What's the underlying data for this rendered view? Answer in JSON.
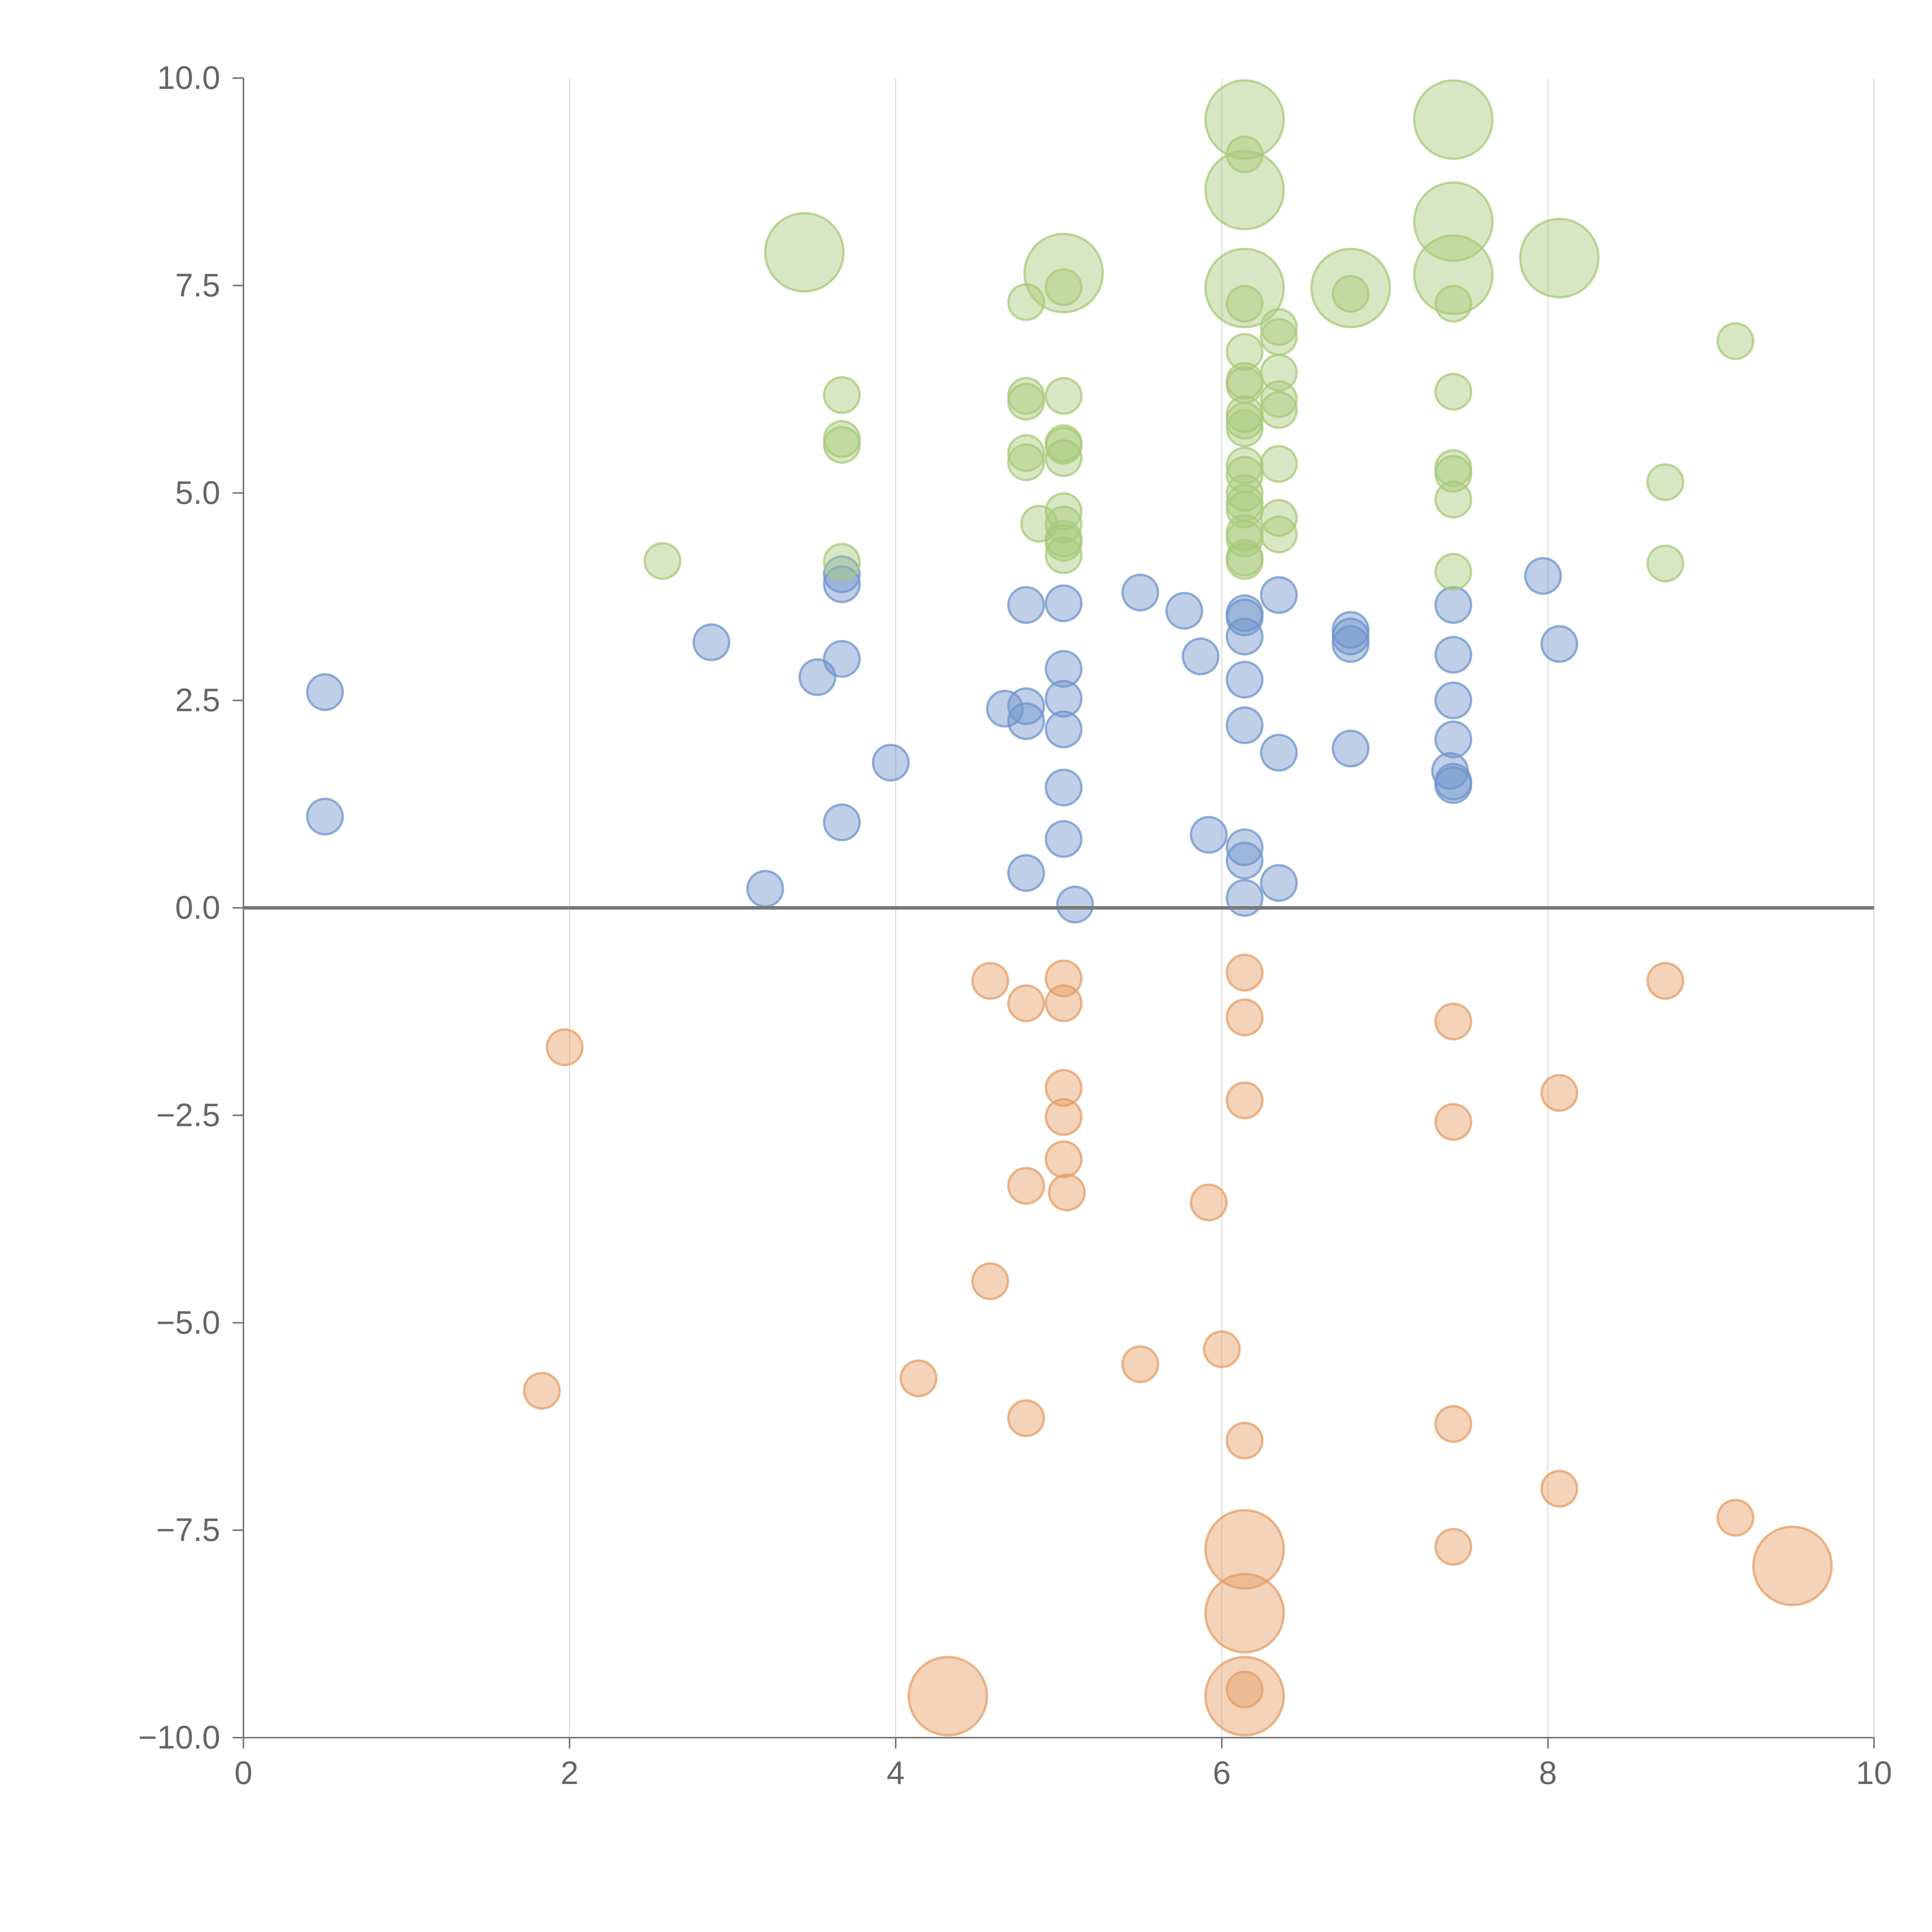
{
  "chart_data": {
    "type": "scatter",
    "title": "",
    "xlabel": "",
    "ylabel": "",
    "xlim": [
      0,
      10
    ],
    "ylim": [
      -10,
      10
    ],
    "grid": "vertical",
    "legend": "none",
    "x_ticks": [
      "0",
      "2",
      "4",
      "6",
      "8",
      "10"
    ],
    "y_ticks": [
      "10.0",
      "7.5",
      "5.0",
      "2.5",
      "0.0",
      "−2.5",
      "−5.0",
      "−7.5",
      "−10.0"
    ],
    "x_tick_values": [
      0,
      2,
      4,
      6,
      8,
      10
    ],
    "y_tick_values": [
      10,
      7.5,
      5,
      2.5,
      0,
      -2.5,
      -5,
      -7.5,
      -10
    ],
    "series": [
      {
        "name": "blue",
        "color": "#7094cc",
        "points": [
          [
            0.5,
            2.6,
            1
          ],
          [
            0.5,
            1.1,
            1
          ],
          [
            2.87,
            3.2,
            1
          ],
          [
            3.2,
            0.23,
            1
          ],
          [
            3.52,
            2.78,
            1
          ],
          [
            3.67,
            3.0,
            1
          ],
          [
            3.67,
            3.9,
            1
          ],
          [
            3.67,
            4.02,
            1
          ],
          [
            3.67,
            1.03,
            1
          ],
          [
            3.97,
            1.75,
            1
          ],
          [
            4.67,
            2.4,
            1
          ],
          [
            4.8,
            3.65,
            1
          ],
          [
            4.8,
            2.43,
            1
          ],
          [
            4.8,
            2.25,
            1
          ],
          [
            4.8,
            0.42,
            1
          ],
          [
            5.03,
            3.67,
            1
          ],
          [
            5.03,
            2.88,
            1
          ],
          [
            5.03,
            2.52,
            1
          ],
          [
            5.03,
            2.15,
            1
          ],
          [
            5.03,
            1.45,
            1
          ],
          [
            5.03,
            0.83,
            1
          ],
          [
            5.1,
            0.04,
            1
          ],
          [
            5.5,
            3.8,
            1
          ],
          [
            5.77,
            3.58,
            1
          ],
          [
            5.87,
            3.03,
            1
          ],
          [
            5.92,
            0.88,
            1
          ],
          [
            6.14,
            3.55,
            1
          ],
          [
            6.14,
            3.5,
            1
          ],
          [
            6.14,
            3.27,
            1
          ],
          [
            6.14,
            2.75,
            1
          ],
          [
            6.14,
            2.2,
            1
          ],
          [
            6.14,
            0.73,
            1
          ],
          [
            6.14,
            0.57,
            1
          ],
          [
            6.14,
            0.12,
            1
          ],
          [
            6.35,
            3.77,
            1
          ],
          [
            6.35,
            1.87,
            1
          ],
          [
            6.35,
            0.3,
            1
          ],
          [
            6.79,
            3.35,
            1
          ],
          [
            6.79,
            3.27,
            1
          ],
          [
            6.79,
            3.18,
            1
          ],
          [
            6.79,
            1.92,
            1
          ],
          [
            7.42,
            3.65,
            1
          ],
          [
            7.42,
            3.05,
            1
          ],
          [
            7.42,
            2.5,
            1
          ],
          [
            7.42,
            2.03,
            1
          ],
          [
            7.4,
            1.65,
            1
          ],
          [
            7.42,
            1.52,
            1
          ],
          [
            7.42,
            1.48,
            1
          ],
          [
            7.97,
            4.0,
            1
          ],
          [
            8.07,
            3.18,
            1
          ]
        ]
      },
      {
        "name": "orange",
        "color": "#e59e66",
        "points": [
          [
            1.97,
            -1.68,
            1
          ],
          [
            1.83,
            -5.82,
            1
          ],
          [
            4.14,
            -5.67,
            1
          ],
          [
            4.32,
            -9.5,
            2.2
          ],
          [
            4.58,
            -0.88,
            1
          ],
          [
            4.58,
            -4.5,
            1
          ],
          [
            4.8,
            -1.15,
            1
          ],
          [
            4.8,
            -3.35,
            1
          ],
          [
            4.8,
            -6.15,
            1
          ],
          [
            5.03,
            -0.85,
            1
          ],
          [
            5.03,
            -1.15,
            1
          ],
          [
            5.03,
            -2.17,
            1
          ],
          [
            5.03,
            -2.52,
            1
          ],
          [
            5.03,
            -3.03,
            1
          ],
          [
            5.05,
            -3.43,
            1
          ],
          [
            5.5,
            -5.5,
            1
          ],
          [
            5.92,
            -3.55,
            1
          ],
          [
            6.0,
            -5.32,
            1
          ],
          [
            6.14,
            -0.78,
            1
          ],
          [
            6.14,
            -1.32,
            1
          ],
          [
            6.14,
            -2.32,
            1
          ],
          [
            6.14,
            -6.42,
            1
          ],
          [
            6.14,
            -7.73,
            2.2
          ],
          [
            6.14,
            -8.5,
            2.2
          ],
          [
            6.14,
            -9.5,
            2.2
          ],
          [
            6.14,
            -9.42,
            1
          ],
          [
            7.42,
            -1.37,
            1
          ],
          [
            7.42,
            -2.58,
            1
          ],
          [
            7.42,
            -6.22,
            1
          ],
          [
            7.42,
            -7.7,
            1
          ],
          [
            8.07,
            -2.23,
            1
          ],
          [
            8.07,
            -7.0,
            1
          ],
          [
            8.72,
            -0.88,
            1
          ],
          [
            9.15,
            -7.35,
            1
          ],
          [
            9.5,
            -7.93,
            2.2
          ]
        ]
      },
      {
        "name": "green",
        "color": "#a8c97a",
        "points": [
          [
            2.57,
            4.18,
            1
          ],
          [
            3.44,
            7.9,
            2.2
          ],
          [
            3.67,
            6.18,
            1
          ],
          [
            3.67,
            5.65,
            1
          ],
          [
            3.67,
            5.58,
            1
          ],
          [
            3.67,
            4.17,
            1
          ],
          [
            4.8,
            7.3,
            1
          ],
          [
            4.8,
            6.17,
            1
          ],
          [
            4.8,
            6.1,
            1
          ],
          [
            4.8,
            5.48,
            1
          ],
          [
            4.8,
            5.37,
            1
          ],
          [
            4.88,
            4.63,
            1
          ],
          [
            5.03,
            7.65,
            2.2
          ],
          [
            5.03,
            7.48,
            1
          ],
          [
            5.03,
            6.17,
            1
          ],
          [
            5.03,
            5.6,
            1
          ],
          [
            5.03,
            5.57,
            1
          ],
          [
            5.03,
            5.42,
            1
          ],
          [
            5.03,
            4.78,
            1
          ],
          [
            5.03,
            4.62,
            1
          ],
          [
            5.03,
            4.45,
            1
          ],
          [
            5.03,
            4.4,
            1
          ],
          [
            5.03,
            4.25,
            1
          ],
          [
            6.14,
            9.5,
            2.2
          ],
          [
            6.14,
            9.08,
            1
          ],
          [
            6.14,
            8.65,
            2.2
          ],
          [
            6.14,
            7.47,
            2.2
          ],
          [
            6.14,
            7.28,
            1
          ],
          [
            6.14,
            6.7,
            1
          ],
          [
            6.14,
            6.35,
            1
          ],
          [
            6.14,
            6.3,
            1
          ],
          [
            6.14,
            5.95,
            1
          ],
          [
            6.14,
            5.87,
            1
          ],
          [
            6.14,
            5.78,
            1
          ],
          [
            6.14,
            5.33,
            1
          ],
          [
            6.14,
            5.22,
            1
          ],
          [
            6.14,
            5.0,
            1
          ],
          [
            6.14,
            4.88,
            1
          ],
          [
            6.14,
            4.8,
            1
          ],
          [
            6.14,
            4.52,
            1
          ],
          [
            6.14,
            4.45,
            1
          ],
          [
            6.14,
            4.22,
            1
          ],
          [
            6.14,
            4.18,
            1
          ],
          [
            6.35,
            7.0,
            1
          ],
          [
            6.35,
            6.88,
            1
          ],
          [
            6.35,
            6.45,
            1
          ],
          [
            6.35,
            6.13,
            1
          ],
          [
            6.35,
            6.0,
            1
          ],
          [
            6.35,
            5.35,
            1
          ],
          [
            6.35,
            4.7,
            1
          ],
          [
            6.35,
            4.5,
            1
          ],
          [
            6.79,
            7.47,
            2.2
          ],
          [
            6.79,
            7.4,
            1
          ],
          [
            7.42,
            9.5,
            2.2
          ],
          [
            7.42,
            8.27,
            2.2
          ],
          [
            7.42,
            7.63,
            2.2
          ],
          [
            7.42,
            7.28,
            1
          ],
          [
            7.42,
            6.22,
            1
          ],
          [
            7.42,
            5.3,
            1
          ],
          [
            7.42,
            5.23,
            1
          ],
          [
            7.42,
            4.92,
            1
          ],
          [
            7.42,
            4.05,
            1
          ],
          [
            8.07,
            7.83,
            2.2
          ],
          [
            8.72,
            5.13,
            1
          ],
          [
            8.72,
            4.15,
            1
          ],
          [
            9.15,
            6.83,
            1
          ]
        ]
      }
    ]
  }
}
